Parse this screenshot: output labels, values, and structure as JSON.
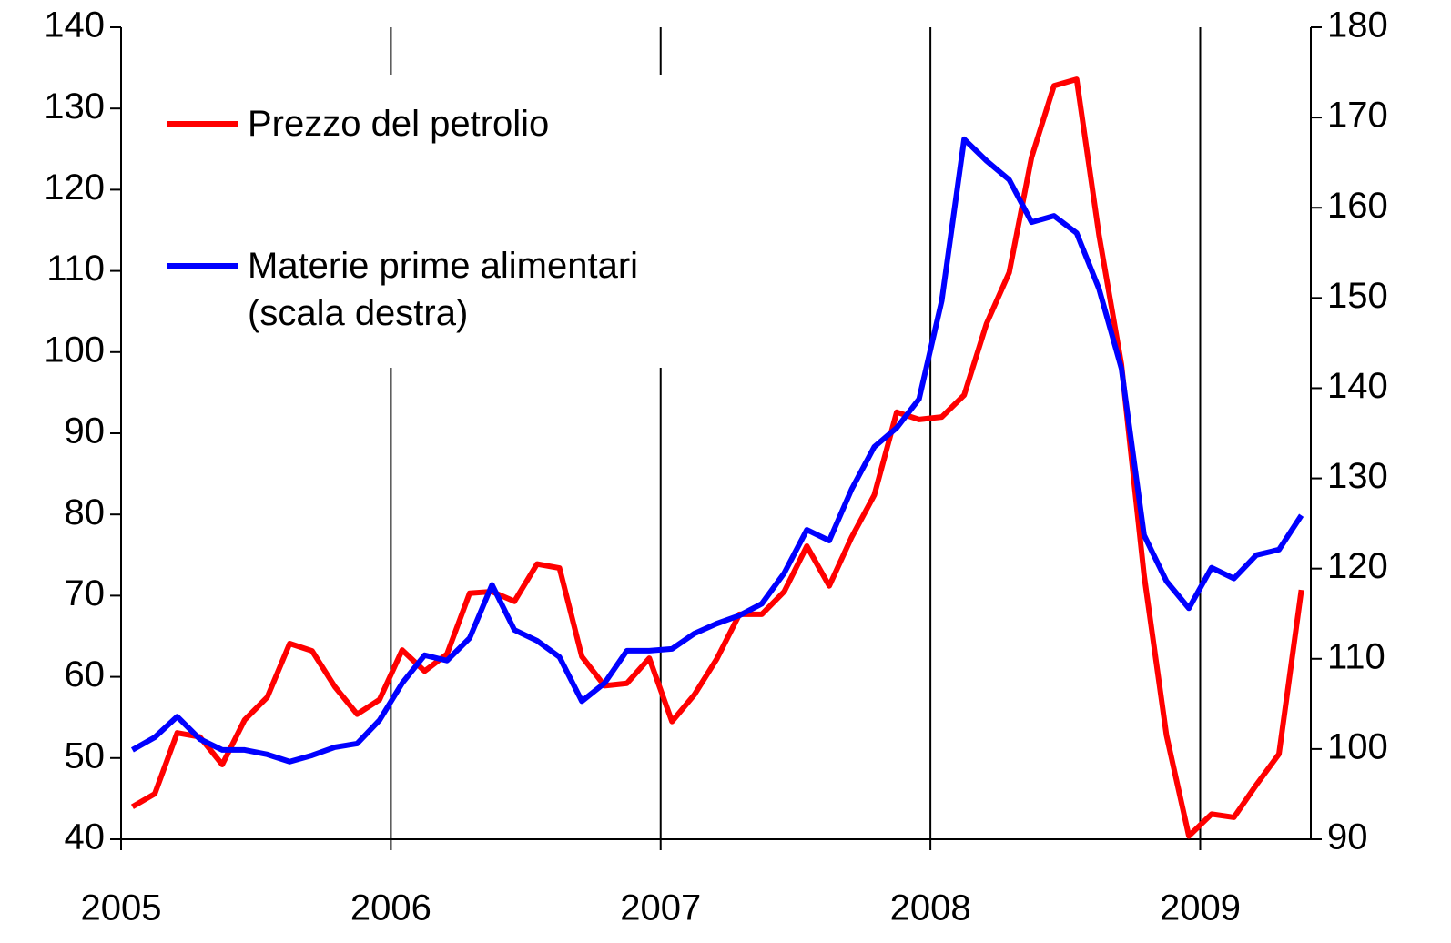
{
  "chart_data": {
    "type": "line",
    "x": [
      2005.042,
      2005.125,
      2005.208,
      2005.292,
      2005.375,
      2005.458,
      2005.542,
      2005.625,
      2005.708,
      2005.792,
      2005.875,
      2005.958,
      2006.042,
      2006.125,
      2006.208,
      2006.292,
      2006.375,
      2006.458,
      2006.542,
      2006.625,
      2006.708,
      2006.792,
      2006.875,
      2006.958,
      2007.042,
      2007.125,
      2007.208,
      2007.292,
      2007.375,
      2007.458,
      2007.542,
      2007.625,
      2007.708,
      2007.792,
      2007.875,
      2007.958,
      2008.042,
      2008.125,
      2008.208,
      2008.292,
      2008.375,
      2008.458,
      2008.542,
      2008.625,
      2008.708,
      2008.792,
      2008.875,
      2008.958,
      2009.042,
      2009.125,
      2009.208,
      2009.292,
      2009.375
    ],
    "series": [
      {
        "name": "Prezzo del petrolio",
        "color": "#ff0000",
        "values": [
          44.0,
          45.6,
          53.1,
          52.6,
          49.2,
          54.7,
          57.5,
          64.1,
          63.2,
          58.8,
          55.4,
          57.2,
          63.3,
          60.7,
          62.8,
          70.3,
          70.5,
          69.3,
          73.9,
          73.4,
          62.5,
          58.9,
          59.2,
          62.3,
          54.5,
          57.8,
          62.2,
          67.7,
          67.7,
          70.5,
          76.1,
          71.2,
          77.2,
          82.4,
          92.6,
          91.7,
          92.0,
          94.7,
          103.5,
          109.8,
          124.0,
          132.8,
          133.6,
          114.4,
          98.5,
          72.5,
          52.8,
          40.4,
          43.1,
          42.7,
          46.7,
          50.5,
          70.7
        ]
      },
      {
        "name": "Materie prime alimentari (scala destra)",
        "color": "#0000ff",
        "axis": "y2",
        "values": [
          99.9,
          101.3,
          103.6,
          101.1,
          99.9,
          99.9,
          99.4,
          98.6,
          99.3,
          100.2,
          100.6,
          103.2,
          107.3,
          110.4,
          109.8,
          112.3,
          118.2,
          113.2,
          112.0,
          110.2,
          105.3,
          107.3,
          110.9,
          110.9,
          111.1,
          112.8,
          113.9,
          114.8,
          116.1,
          119.5,
          124.3,
          123.1,
          128.8,
          133.5,
          135.6,
          138.8,
          149.7,
          167.6,
          165.2,
          163.1,
          158.4,
          159.1,
          157.2,
          151.0,
          142.2,
          123.7,
          118.6,
          115.6,
          120.1,
          118.9,
          121.5,
          122.1,
          125.9
        ]
      }
    ],
    "xlim": [
      2005,
      2009.41
    ],
    "xticks": [
      2005,
      2006,
      2007,
      2008,
      2009
    ],
    "ylim": [
      40,
      140
    ],
    "yticks": [
      40,
      50,
      60,
      70,
      80,
      90,
      100,
      110,
      120,
      130,
      140
    ],
    "y2lim": [
      90,
      180
    ],
    "y2ticks": [
      90,
      100,
      110,
      120,
      130,
      140,
      150,
      160,
      170,
      180
    ],
    "grid": true,
    "legend": "upper left"
  }
}
